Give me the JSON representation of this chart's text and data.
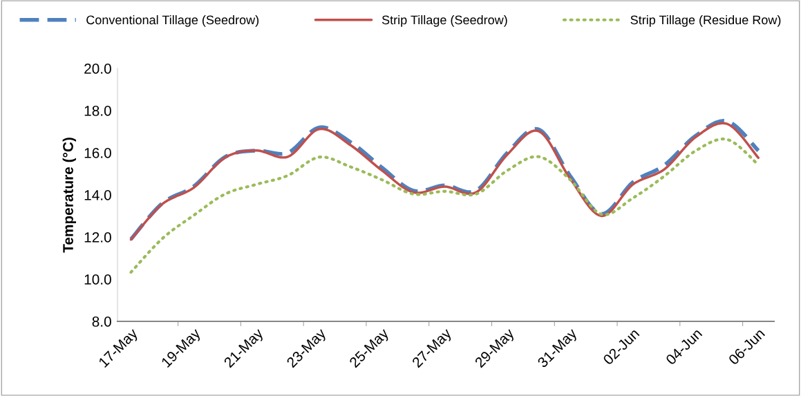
{
  "chart_data": {
    "type": "line",
    "ylabel": "Temperature (°C)",
    "categories": [
      "17-May",
      null,
      "19-May",
      null,
      "21-May",
      null,
      "23-May",
      null,
      "25-May",
      null,
      "27-May",
      null,
      "29-May",
      null,
      "31-May",
      null,
      "02-Jun",
      null,
      "04-Jun",
      null,
      "06-Jun"
    ],
    "series": [
      {
        "name": "Conventional Tillage (Seedrow)",
        "color": "#4f81bd",
        "line_style": "dashed",
        "values": [
          11.9,
          13.6,
          14.4,
          15.8,
          16.1,
          16.0,
          17.2,
          16.5,
          15.3,
          14.2,
          14.45,
          14.2,
          16.0,
          17.1,
          14.9,
          13.1,
          14.6,
          15.4,
          16.8,
          17.5,
          16.1
        ]
      },
      {
        "name": "Strip Tillage (Seedrow)",
        "color": "#c0504d",
        "line_style": "solid",
        "values": [
          11.88,
          13.57,
          14.34,
          15.77,
          16.11,
          15.81,
          17.12,
          16.36,
          15.16,
          14.12,
          14.39,
          14.12,
          15.92,
          17.02,
          14.77,
          13.0,
          14.5,
          15.21,
          16.74,
          17.37,
          15.76
        ]
      },
      {
        "name": "Strip Tillage (Residue Row)",
        "color": "#9bbb59",
        "line_style": "dotted",
        "values": [
          10.33,
          11.93,
          13.03,
          14.04,
          14.5,
          14.92,
          15.79,
          15.33,
          14.72,
          14.04,
          14.17,
          14.04,
          15.16,
          15.81,
          14.72,
          13.08,
          13.85,
          14.89,
          16.09,
          16.63,
          15.43
        ]
      }
    ],
    "ylim": [
      8,
      20
    ],
    "yticks": [
      {
        "value": 8,
        "label": "8.0"
      },
      {
        "value": 10,
        "label": "10.0"
      },
      {
        "value": 12,
        "label": "12.0"
      },
      {
        "value": 14,
        "label": "14.0"
      },
      {
        "value": 16,
        "label": "16.0"
      },
      {
        "value": 18,
        "label": "18.0"
      },
      {
        "value": 20,
        "label": "20.0"
      }
    ],
    "grid": false,
    "legend": "top",
    "marker": "none"
  }
}
